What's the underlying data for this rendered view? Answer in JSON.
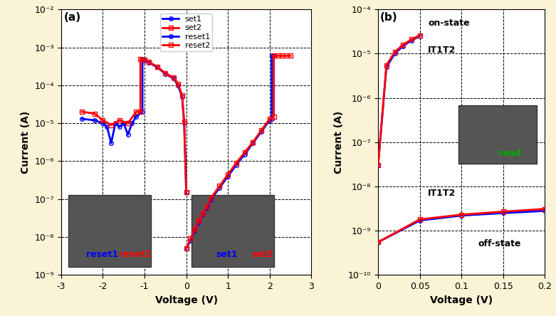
{
  "chart_data": [
    {
      "type": "line",
      "title": "(a)",
      "x_label": "Voltage (V)",
      "y_label": "Current (A)",
      "log": "y",
      "grid": true,
      "legend": "upper center",
      "xlim": [
        -3,
        3
      ],
      "xticks": [
        -3,
        -2,
        -1,
        0,
        1,
        2,
        3
      ],
      "ylim": [
        1e-09,
        0.01
      ],
      "yticks": [
        {
          "value": 1e-09,
          "label": "10⁻⁹"
        },
        {
          "value": 1e-08,
          "label": "10⁻⁸"
        },
        {
          "value": 1e-07,
          "label": "10⁻⁷"
        },
        {
          "value": 1e-06,
          "label": "10⁻⁶"
        },
        {
          "value": 1e-05,
          "label": "10⁻⁵"
        },
        {
          "value": 0.0001,
          "label": "10⁻⁴"
        },
        {
          "value": 0.001,
          "label": "10⁻³"
        },
        {
          "value": 0.01,
          "label": "10⁻²"
        }
      ],
      "series": [
        {
          "name": "set1",
          "color": "#0000ff",
          "marker": "o",
          "x": [
            0,
            0.1,
            0.2,
            0.3,
            0.4,
            0.5,
            0.6,
            0.8,
            1.0,
            1.2,
            1.4,
            1.6,
            1.8,
            2.0,
            2.05,
            2.05,
            2.1
          ],
          "values": [
            5e-09,
            8e-09,
            1.5e-08,
            2.5e-08,
            4e-08,
            6e-08,
            1e-07,
            2e-07,
            4e-07,
            8e-07,
            1.5e-06,
            3e-06,
            6e-06,
            1.2e-05,
            1.3e-05,
            0.0006,
            0.0006
          ]
        },
        {
          "name": "set2",
          "color": "#ff0000",
          "marker": "s",
          "x": [
            0,
            0.1,
            0.2,
            0.3,
            0.4,
            0.5,
            0.6,
            0.8,
            1.0,
            1.2,
            1.4,
            1.6,
            1.8,
            2.0,
            2.1,
            2.1,
            2.2,
            2.3,
            2.4,
            2.5
          ],
          "values": [
            5e-09,
            9e-09,
            1.6e-08,
            2.7e-08,
            4.2e-08,
            6.5e-08,
            1.1e-07,
            2.2e-07,
            4.5e-07,
            9e-07,
            1.7e-06,
            3.2e-06,
            6.5e-06,
            1.3e-05,
            1.5e-05,
            0.0006,
            0.0006,
            0.0006,
            0.0006,
            0.0006
          ]
        },
        {
          "name": "reset1",
          "color": "#0000ff",
          "marker": "o",
          "x": [
            0,
            -0.05,
            -0.1,
            -0.2,
            -0.3,
            -0.5,
            -0.7,
            -0.9,
            -1.0,
            -1.05,
            -1.05,
            -1.2,
            -1.3,
            -1.4,
            -1.5,
            -1.6,
            -1.7,
            -1.8,
            -1.9,
            -2.0,
            -2.2,
            -2.5
          ],
          "values": [
            1.5e-07,
            1e-05,
            5e-05,
            0.0001,
            0.00015,
            0.0002,
            0.0003,
            0.0004,
            0.00045,
            0.0005,
            2e-05,
            1.5e-05,
            1e-05,
            5e-06,
            1e-05,
            8e-06,
            1e-05,
            3e-06,
            8e-06,
            1e-05,
            1.2e-05,
            1.3e-05
          ]
        },
        {
          "name": "reset2",
          "color": "#ff0000",
          "marker": "s",
          "x": [
            0,
            -0.05,
            -0.1,
            -0.2,
            -0.3,
            -0.5,
            -0.7,
            -0.9,
            -1.0,
            -1.1,
            -1.1,
            -1.2,
            -1.4,
            -1.6,
            -1.8,
            -2.0,
            -2.2,
            -2.5
          ],
          "values": [
            1.5e-07,
            1.1e-05,
            5.5e-05,
            0.00011,
            0.00016,
            0.00021,
            0.00031,
            0.00042,
            0.00047,
            0.0005,
            2e-05,
            2e-05,
            1e-05,
            1.2e-05,
            9e-06,
            1.2e-05,
            1.8e-05,
            2e-05
          ]
        }
      ],
      "annotations": [
        {
          "text": "reset1",
          "color": "#0000ff"
        },
        {
          "text": "reset2",
          "color": "#ff0000"
        },
        {
          "text": "set1",
          "color": "#0000ff"
        },
        {
          "text": "set2",
          "color": "#ff0000"
        }
      ]
    },
    {
      "type": "line",
      "title": "(b)",
      "x_label": "Voltage (V)",
      "y_label": "Current (A)",
      "log": "y",
      "grid": true,
      "xlim": [
        0,
        0.2
      ],
      "xticks": [
        0,
        0.05,
        0.1,
        0.15,
        0.2
      ],
      "ylim": [
        1e-10,
        0.0001
      ],
      "yticks": [
        {
          "value": 1e-10,
          "label": "10⁻¹⁰"
        },
        {
          "value": 1e-09,
          "label": "10⁻⁹"
        },
        {
          "value": 1e-08,
          "label": "10⁻⁸"
        },
        {
          "value": 1e-07,
          "label": "10⁻⁷"
        },
        {
          "value": 1e-06,
          "label": "10⁻⁶"
        },
        {
          "value": 1e-05,
          "label": "10⁻⁵"
        },
        {
          "value": 0.0001,
          "label": "10⁻⁴"
        }
      ],
      "series": [
        {
          "color": "#0000ff",
          "marker": "o",
          "x": [
            0,
            0.01,
            0.02,
            0.03,
            0.04,
            0.05
          ],
          "values": [
            3e-08,
            5e-06,
            1e-05,
            1.5e-05,
            2e-05,
            2.5e-05
          ]
        },
        {
          "color": "#ff0000",
          "marker": "s",
          "x": [
            0,
            0.01,
            0.02,
            0.03,
            0.04,
            0.05
          ],
          "values": [
            3e-08,
            5.5e-06,
            1.1e-05,
            1.6e-05,
            2.1e-05,
            2.6e-05
          ]
        },
        {
          "color": "#0000ff",
          "marker": "o",
          "x": [
            0,
            0.05,
            0.1,
            0.15,
            0.2
          ],
          "values": [
            5.5e-10,
            1.7e-09,
            2.2e-09,
            2.5e-09,
            2.8e-09
          ]
        },
        {
          "color": "#ff0000",
          "marker": "s",
          "x": [
            0,
            0.05,
            0.1,
            0.15,
            0.2
          ],
          "values": [
            5.5e-10,
            1.8e-09,
            2.3e-09,
            2.7e-09,
            3.1e-09
          ]
        }
      ],
      "annotations": [
        {
          "text": "on-state",
          "color": "#000000"
        },
        {
          "text": "IT1T2",
          "color": "#000000"
        },
        {
          "text": "IT1T2",
          "color": "#000000"
        },
        {
          "text": "off-state",
          "color": "#000000"
        },
        {
          "text": "read",
          "color": "#00aa00"
        }
      ]
    }
  ]
}
